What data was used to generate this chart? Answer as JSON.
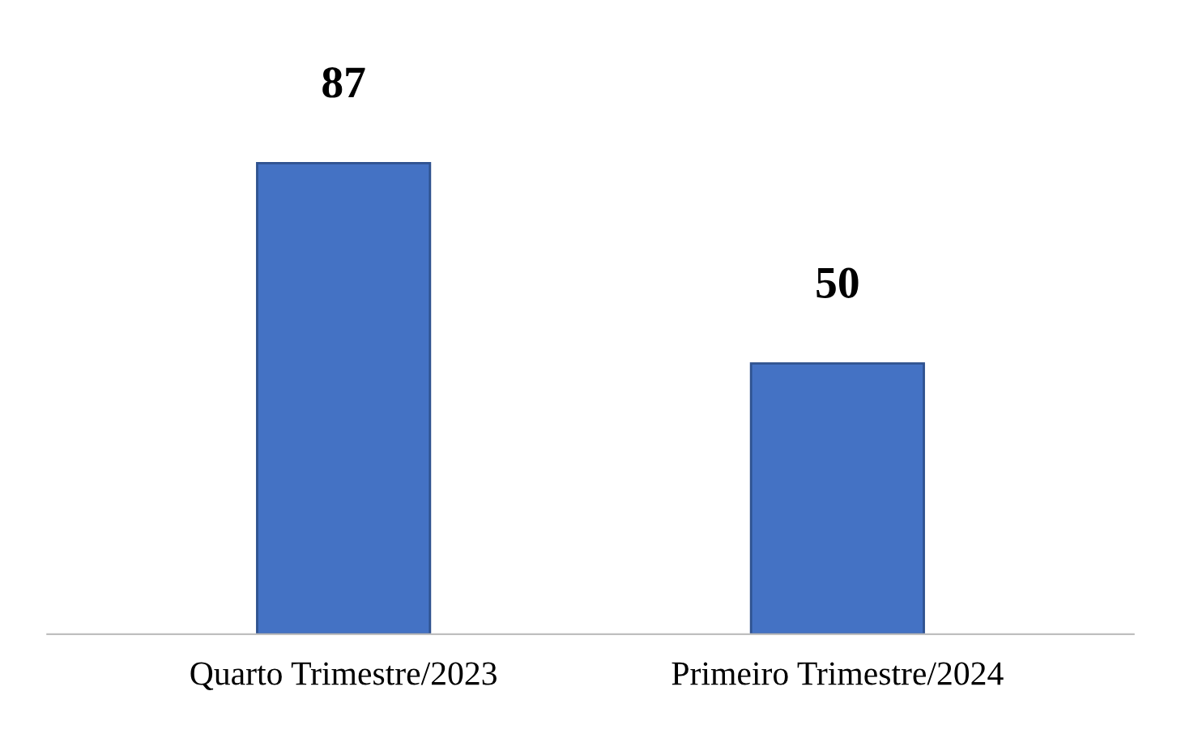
{
  "chart_data": {
    "type": "bar",
    "categories": [
      "Quarto Trimestre/2023",
      "Primeiro Trimestre/2024"
    ],
    "values": [
      87,
      50
    ],
    "color": "#4472c4",
    "data_labels": true,
    "grid": false,
    "legend": false
  }
}
